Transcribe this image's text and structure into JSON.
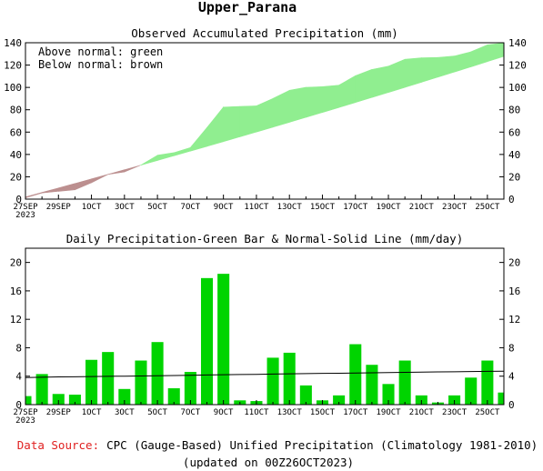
{
  "region_title": "Upper_Parana",
  "chart_data": [
    {
      "type": "area",
      "title": "Observed Accumulated Precipitation (mm)",
      "notes": [
        "Above normal: green",
        "Below normal: brown"
      ],
      "colors": {
        "above": "#90ee90",
        "below": "#bc8f8f"
      },
      "ylim": [
        0,
        140
      ],
      "yticks": [
        0,
        20,
        40,
        60,
        80,
        100,
        120,
        140
      ],
      "dates": [
        "27SEP",
        "28SEP",
        "29SEP",
        "30SEP",
        "1OCT",
        "2OCT",
        "3OCT",
        "4OCT",
        "5OCT",
        "6OCT",
        "7OCT",
        "8OCT",
        "9OCT",
        "10OCT",
        "11OCT",
        "12OCT",
        "13OCT",
        "14OCT",
        "15OCT",
        "16OCT",
        "17OCT",
        "18OCT",
        "19OCT",
        "20OCT",
        "21OCT",
        "22OCT",
        "23OCT",
        "24OCT",
        "25OCT",
        "26OCT"
      ],
      "xtick_labels": [
        {
          "i": 0,
          "label": "27SEP",
          "sub": "2023"
        },
        {
          "i": 2,
          "label": "29SEP"
        },
        {
          "i": 4,
          "label": "1OCT"
        },
        {
          "i": 6,
          "label": "3OCT"
        },
        {
          "i": 8,
          "label": "5OCT"
        },
        {
          "i": 10,
          "label": "7OCT"
        },
        {
          "i": 12,
          "label": "9OCT"
        },
        {
          "i": 14,
          "label": "11OCT"
        },
        {
          "i": 16,
          "label": "13OCT"
        },
        {
          "i": 18,
          "label": "15OCT"
        },
        {
          "i": 20,
          "label": "17OCT"
        },
        {
          "i": 22,
          "label": "19OCT"
        },
        {
          "i": 24,
          "label": "21OCT"
        },
        {
          "i": 26,
          "label": "23OCT"
        },
        {
          "i": 28,
          "label": "25OCT"
        }
      ],
      "observed": [
        1.2,
        5.5,
        7.0,
        8.4,
        14.7,
        22.1,
        24.3,
        30.5,
        39.3,
        41.6,
        46.2,
        64.0,
        82.4,
        83.0,
        83.5,
        90.1,
        97.4,
        100.1,
        100.7,
        102.0,
        110.5,
        116.1,
        119.0,
        125.2,
        126.5,
        126.8,
        128.1,
        131.9,
        138.1,
        139.8
      ],
      "normal": [
        2.0,
        6.0,
        10.0,
        14.0,
        18.1,
        22.2,
        26.3,
        30.4,
        34.6,
        38.8,
        43.0,
        47.2,
        51.5,
        55.8,
        60.1,
        64.4,
        68.8,
        73.2,
        77.6,
        82.0,
        86.5,
        91.0,
        95.5,
        100.0,
        104.6,
        109.2,
        113.8,
        118.4,
        123.1,
        127.8
      ]
    },
    {
      "type": "bar",
      "title": "Daily Precipitation-Green Bar & Normal-Solid Line (mm/day)",
      "colors": {
        "bar": "#00d400",
        "line": "#000000"
      },
      "ylim": [
        0,
        22
      ],
      "yticks": [
        0,
        4,
        8,
        12,
        16,
        20
      ],
      "values": [
        1.2,
        4.3,
        1.5,
        1.4,
        6.3,
        7.4,
        2.2,
        6.2,
        8.8,
        2.3,
        4.6,
        17.8,
        18.4,
        0.6,
        0.5,
        6.6,
        7.3,
        2.7,
        0.6,
        1.3,
        8.5,
        5.6,
        2.9,
        6.2,
        1.3,
        0.3,
        1.3,
        3.8,
        6.2,
        1.7
      ],
      "normal": [
        3.8,
        3.85,
        3.9,
        3.92,
        3.95,
        3.98,
        4.0,
        4.03,
        4.06,
        4.1,
        4.13,
        4.17,
        4.2,
        4.23,
        4.26,
        4.3,
        4.33,
        4.36,
        4.39,
        4.42,
        4.45,
        4.48,
        4.51,
        4.54,
        4.57,
        4.6,
        4.62,
        4.65,
        4.68,
        4.7
      ]
    }
  ],
  "footer": {
    "source_label": "Data Source:",
    "source_text": "CPC (Gauge-Based) Unified Precipitation (Climatology 1981-2010)",
    "updated": "(updated on 00Z26OCT2023)"
  }
}
